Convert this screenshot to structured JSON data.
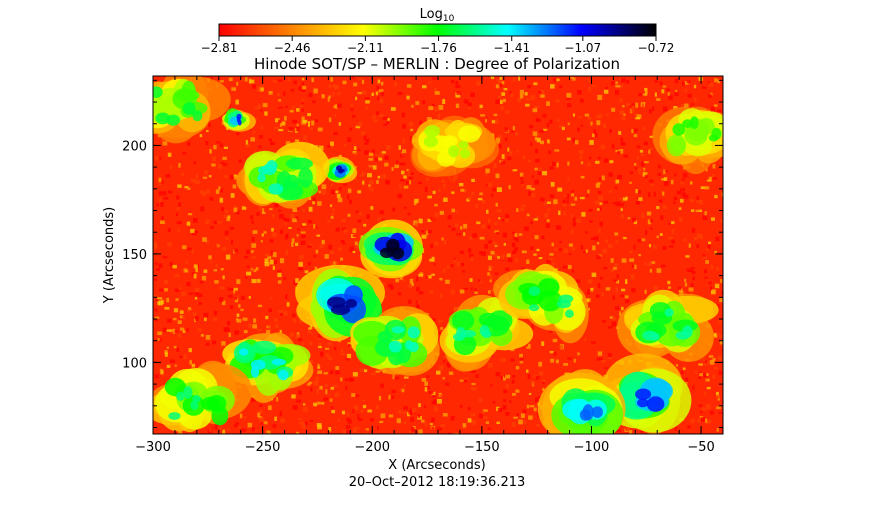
{
  "chart_data": {
    "type": "heatmap",
    "title": "Hinode SOT/SP – MERLIN : Degree of Polarization",
    "subtitle": "20–Oct–2012 18:19:36.213",
    "xlabel": "X (Arcseconds)",
    "ylabel": "Y (Arcseconds)",
    "xlim": [
      -300,
      -40
    ],
    "ylim": [
      67,
      232
    ],
    "x_ticks": [
      -300,
      -250,
      -200,
      -150,
      -100,
      -50
    ],
    "x_tick_labels": [
      "−300",
      "−250",
      "−200",
      "−150",
      "−100",
      "−50"
    ],
    "y_ticks": [
      100,
      150,
      200
    ],
    "y_tick_labels": [
      "100",
      "150",
      "200"
    ],
    "grid": false,
    "colorbar": {
      "label_main": "Log",
      "label_sub": "10",
      "range": [
        -2.81,
        -0.72
      ],
      "ticks": [
        -2.81,
        -2.46,
        -2.11,
        -1.76,
        -1.41,
        -1.07,
        -0.72
      ],
      "tick_labels": [
        "−2.81",
        "−2.46",
        "−2.11",
        "−1.76",
        "−1.41",
        "−1.07",
        "−0.72"
      ],
      "colormap": [
        "#ff0000",
        "#ff7f00",
        "#ffff00",
        "#00ff00",
        "#00ffff",
        "#0000ff",
        "#000000"
      ]
    },
    "background_value": -2.7,
    "features": [
      {
        "kind": "sunspot",
        "x": -191,
        "y": 152,
        "value": -0.75
      },
      {
        "kind": "plage",
        "x": -213,
        "y": 128,
        "value": -0.9
      },
      {
        "kind": "pore",
        "x": -215,
        "y": 188,
        "value": -0.95
      },
      {
        "kind": "pore",
        "x": -262,
        "y": 212,
        "value": -1.1
      },
      {
        "kind": "network",
        "x": -240,
        "y": 185,
        "value": -1.5
      },
      {
        "kind": "network",
        "x": -190,
        "y": 110,
        "value": -1.5
      },
      {
        "kind": "network",
        "x": -150,
        "y": 115,
        "value": -1.55
      },
      {
        "kind": "network",
        "x": -120,
        "y": 128,
        "value": -1.6
      },
      {
        "kind": "network",
        "x": -65,
        "y": 118,
        "value": -1.55
      },
      {
        "kind": "plage",
        "x": -75,
        "y": 85,
        "value": -1.1
      },
      {
        "kind": "plage",
        "x": -102,
        "y": 80,
        "value": -1.2
      },
      {
        "kind": "network",
        "x": -248,
        "y": 100,
        "value": -1.4
      },
      {
        "kind": "network",
        "x": -280,
        "y": 82,
        "value": -1.6
      },
      {
        "kind": "network",
        "x": -290,
        "y": 218,
        "value": -1.7
      },
      {
        "kind": "network",
        "x": -52,
        "y": 205,
        "value": -1.8
      },
      {
        "kind": "network",
        "x": -165,
        "y": 200,
        "value": -2.0
      }
    ]
  }
}
